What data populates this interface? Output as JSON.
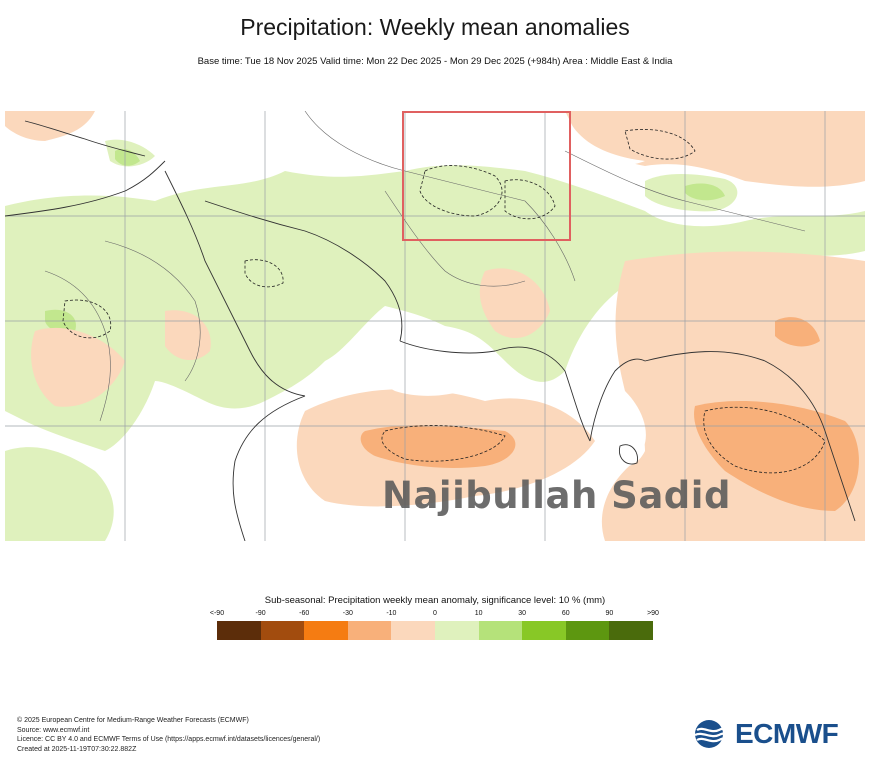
{
  "header": {
    "title": "Precipitation: Weekly mean anomalies",
    "subtitle": "Base time: Tue 18 Nov 2025 Valid time: Mon 22 Dec 2025 - Mon 29 Dec 2025 (+984h) Area : Middle East & India"
  },
  "map": {
    "watermark": "Najibullah Sadid",
    "highlight_color": "#e06060",
    "land_color": "#ffffff"
  },
  "legend": {
    "title": "Sub-seasonal: Precipitation weekly mean anomaly, significance level: 10 % (mm)",
    "ticks": [
      "<-90",
      "-90",
      "-60",
      "-30",
      "-10",
      "0",
      "10",
      "30",
      "60",
      "90",
      ">90"
    ],
    "colors": [
      "#5c2d0a",
      "#a24c0e",
      "#f57c12",
      "#f8b07a",
      "#fbd8bc",
      "#dff1bd",
      "#b5e27a",
      "#88c826",
      "#5d9710",
      "#4a6b0c"
    ]
  },
  "footer": {
    "line1": "© 2025 European Centre for Medium-Range Weather Forecasts (ECMWF)",
    "line2": "Source: www.ecmwf.int",
    "line3": "Licence: CC BY 4.0 and ECMWF Terms of Use (https://apps.ecmwf.int/datasets/licences/general/)",
    "line4": "Created at 2025-11-19T07:30:22.882Z"
  },
  "logo": {
    "text": "ECMWF",
    "color": "#1a4f8c"
  }
}
